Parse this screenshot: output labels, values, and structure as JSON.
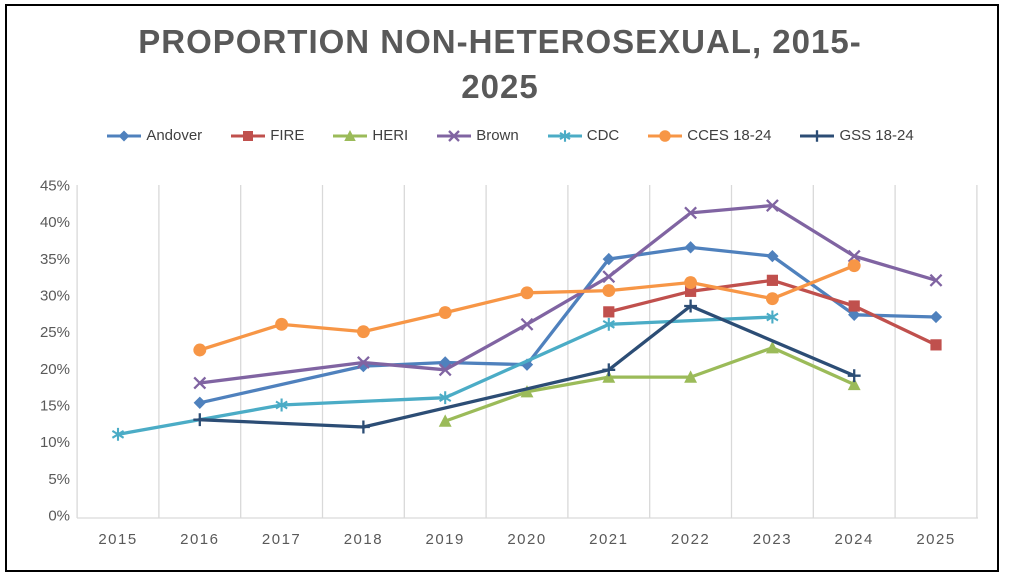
{
  "title_lines": [
    "PROPORTION NON-HETEROSEXUAL, 2015-",
    "2025"
  ],
  "chart_data": {
    "type": "line",
    "title": "PROPORTION NON-HETEROSEXUAL, 2015-2025",
    "legend_position": "top",
    "grid": "vertical-only",
    "categories": [
      "2015",
      "2016",
      "2017",
      "2018",
      "2019",
      "2020",
      "2021",
      "2022",
      "2023",
      "2024",
      "2025"
    ],
    "y_axis": {
      "min": 0,
      "max": 45,
      "step": 5,
      "unit": "%",
      "tick_labels": [
        "0%",
        "5%",
        "10%",
        "15%",
        "20%",
        "25%",
        "30%",
        "35%",
        "40%",
        "45%"
      ]
    },
    "series": [
      {
        "name": "Andover",
        "color": "#4F81BD",
        "marker": "diamond",
        "values": [
          null,
          15.3,
          null,
          20.3,
          20.8,
          20.5,
          34.9,
          36.5,
          35.3,
          27.3,
          27
        ]
      },
      {
        "name": "FIRE",
        "color": "#C0504D",
        "marker": "square",
        "values": [
          null,
          null,
          null,
          null,
          null,
          null,
          27.7,
          30.5,
          32,
          28.5,
          23.2
        ]
      },
      {
        "name": "HERI",
        "color": "#9BBB59",
        "marker": "triangle",
        "values": [
          null,
          null,
          null,
          null,
          12.8,
          16.8,
          18.8,
          18.8,
          22.8,
          17.8,
          null
        ]
      },
      {
        "name": "Brown",
        "color": "#8064A2",
        "marker": "x",
        "values": [
          null,
          18,
          null,
          20.8,
          19.8,
          26,
          32.5,
          41.2,
          42.2,
          35.3,
          32
        ]
      },
      {
        "name": "CDC",
        "color": "#4BACC6",
        "marker": "asterisk",
        "values": [
          11,
          null,
          15,
          null,
          16,
          null,
          26,
          null,
          27,
          null,
          null
        ]
      },
      {
        "name": "CCES 18-24",
        "color": "#F79646",
        "marker": "circle",
        "values": [
          null,
          22.5,
          26,
          25,
          27.6,
          30.3,
          30.6,
          31.7,
          29.5,
          34,
          null
        ]
      },
      {
        "name": "GSS 18-24",
        "color": "#2C4D75",
        "marker": "plus",
        "values": [
          null,
          13,
          null,
          12,
          null,
          null,
          19.8,
          28.5,
          null,
          19,
          null
        ]
      }
    ]
  }
}
